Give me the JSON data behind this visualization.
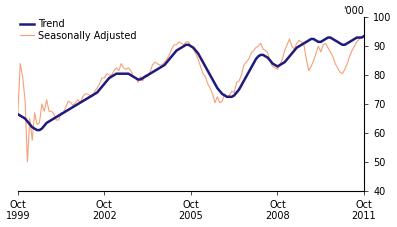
{
  "ylabel_right": "'000",
  "ylim": [
    40,
    100
  ],
  "yticks": [
    40,
    50,
    60,
    70,
    80,
    90,
    100
  ],
  "legend": [
    {
      "label": "Trend",
      "color": "#1f1a7c",
      "lw": 1.8
    },
    {
      "label": "Seasonally Adjusted",
      "color": "#f5a07a",
      "lw": 0.8
    }
  ],
  "background_color": "#ffffff",
  "trend_data": [
    [
      0,
      66.5
    ],
    [
      1,
      66.0
    ],
    [
      2,
      65.5
    ],
    [
      3,
      65.0
    ],
    [
      4,
      64.0
    ],
    [
      5,
      63.0
    ],
    [
      6,
      62.0
    ],
    [
      7,
      61.5
    ],
    [
      8,
      61.0
    ],
    [
      9,
      61.0
    ],
    [
      10,
      61.5
    ],
    [
      11,
      62.5
    ],
    [
      12,
      63.5
    ],
    [
      13,
      64.0
    ],
    [
      14,
      64.5
    ],
    [
      15,
      65.0
    ],
    [
      16,
      65.5
    ],
    [
      17,
      66.0
    ],
    [
      18,
      66.5
    ],
    [
      19,
      67.0
    ],
    [
      20,
      67.5
    ],
    [
      21,
      68.0
    ],
    [
      22,
      68.5
    ],
    [
      23,
      69.0
    ],
    [
      24,
      69.5
    ],
    [
      25,
      70.0
    ],
    [
      26,
      70.5
    ],
    [
      27,
      71.0
    ],
    [
      28,
      71.5
    ],
    [
      29,
      72.0
    ],
    [
      30,
      72.5
    ],
    [
      31,
      73.0
    ],
    [
      32,
      73.5
    ],
    [
      33,
      74.0
    ],
    [
      34,
      75.0
    ],
    [
      35,
      76.0
    ],
    [
      36,
      77.0
    ],
    [
      37,
      78.0
    ],
    [
      38,
      79.0
    ],
    [
      39,
      79.5
    ],
    [
      40,
      80.0
    ],
    [
      41,
      80.5
    ],
    [
      42,
      80.5
    ],
    [
      43,
      80.5
    ],
    [
      44,
      80.5
    ],
    [
      45,
      80.5
    ],
    [
      46,
      80.5
    ],
    [
      47,
      80.0
    ],
    [
      48,
      79.5
    ],
    [
      49,
      79.0
    ],
    [
      50,
      78.5
    ],
    [
      51,
      78.5
    ],
    [
      52,
      79.0
    ],
    [
      53,
      79.5
    ],
    [
      54,
      80.0
    ],
    [
      55,
      80.5
    ],
    [
      56,
      81.0
    ],
    [
      57,
      81.5
    ],
    [
      58,
      82.0
    ],
    [
      59,
      82.5
    ],
    [
      60,
      83.0
    ],
    [
      61,
      83.5
    ],
    [
      62,
      84.5
    ],
    [
      63,
      85.5
    ],
    [
      64,
      86.5
    ],
    [
      65,
      87.5
    ],
    [
      66,
      88.5
    ],
    [
      67,
      89.0
    ],
    [
      68,
      89.5
    ],
    [
      69,
      90.0
    ],
    [
      70,
      90.5
    ],
    [
      71,
      90.5
    ],
    [
      72,
      90.0
    ],
    [
      73,
      89.5
    ],
    [
      74,
      88.5
    ],
    [
      75,
      87.5
    ],
    [
      76,
      86.0
    ],
    [
      77,
      84.5
    ],
    [
      78,
      83.0
    ],
    [
      79,
      81.5
    ],
    [
      80,
      80.0
    ],
    [
      81,
      78.5
    ],
    [
      82,
      77.0
    ],
    [
      83,
      75.5
    ],
    [
      84,
      74.5
    ],
    [
      85,
      73.5
    ],
    [
      86,
      73.0
    ],
    [
      87,
      72.5
    ],
    [
      88,
      72.5
    ],
    [
      89,
      72.5
    ],
    [
      90,
      73.0
    ],
    [
      91,
      74.0
    ],
    [
      92,
      75.0
    ],
    [
      93,
      76.5
    ],
    [
      94,
      78.0
    ],
    [
      95,
      79.5
    ],
    [
      96,
      81.0
    ],
    [
      97,
      82.5
    ],
    [
      98,
      84.0
    ],
    [
      99,
      85.5
    ],
    [
      100,
      86.5
    ],
    [
      101,
      87.0
    ],
    [
      102,
      87.0
    ],
    [
      103,
      86.5
    ],
    [
      104,
      86.0
    ],
    [
      105,
      85.0
    ],
    [
      106,
      84.0
    ],
    [
      107,
      83.5
    ],
    [
      108,
      83.0
    ],
    [
      109,
      83.5
    ],
    [
      110,
      84.0
    ],
    [
      111,
      84.5
    ],
    [
      112,
      85.5
    ],
    [
      113,
      86.5
    ],
    [
      114,
      87.5
    ],
    [
      115,
      88.5
    ],
    [
      116,
      89.5
    ],
    [
      117,
      90.0
    ],
    [
      118,
      90.5
    ],
    [
      119,
      91.0
    ],
    [
      120,
      91.5
    ],
    [
      121,
      92.0
    ],
    [
      122,
      92.5
    ],
    [
      123,
      92.5
    ],
    [
      124,
      92.0
    ],
    [
      125,
      91.5
    ],
    [
      126,
      91.5
    ],
    [
      127,
      92.0
    ],
    [
      128,
      92.5
    ],
    [
      129,
      93.0
    ],
    [
      130,
      93.0
    ],
    [
      131,
      92.5
    ],
    [
      132,
      92.0
    ],
    [
      133,
      91.5
    ],
    [
      134,
      91.0
    ],
    [
      135,
      90.5
    ],
    [
      136,
      90.5
    ],
    [
      137,
      91.0
    ],
    [
      138,
      91.5
    ],
    [
      139,
      92.0
    ],
    [
      140,
      92.5
    ],
    [
      141,
      93.0
    ],
    [
      142,
      93.0
    ],
    [
      143,
      93.0
    ],
    [
      144,
      93.5
    ]
  ],
  "sa_data": [
    [
      0,
      66.5
    ],
    [
      1,
      84.0
    ],
    [
      2,
      79.5
    ],
    [
      3,
      71.5
    ],
    [
      4,
      50.0
    ],
    [
      5,
      65.0
    ],
    [
      6,
      57.5
    ],
    [
      7,
      67.0
    ],
    [
      8,
      63.0
    ],
    [
      9,
      63.5
    ],
    [
      10,
      70.0
    ],
    [
      11,
      67.5
    ],
    [
      12,
      71.5
    ],
    [
      13,
      67.5
    ],
    [
      14,
      67.5
    ],
    [
      15,
      66.5
    ],
    [
      16,
      64.5
    ],
    [
      17,
      64.5
    ],
    [
      18,
      67.0
    ],
    [
      19,
      67.0
    ],
    [
      20,
      69.0
    ],
    [
      21,
      71.0
    ],
    [
      22,
      70.5
    ],
    [
      23,
      69.5
    ],
    [
      24,
      70.5
    ],
    [
      25,
      71.5
    ],
    [
      26,
      70.5
    ],
    [
      27,
      72.5
    ],
    [
      28,
      73.5
    ],
    [
      29,
      73.5
    ],
    [
      30,
      73.0
    ],
    [
      31,
      72.5
    ],
    [
      32,
      74.5
    ],
    [
      33,
      75.5
    ],
    [
      34,
      77.0
    ],
    [
      35,
      79.0
    ],
    [
      36,
      79.0
    ],
    [
      37,
      80.5
    ],
    [
      38,
      80.0
    ],
    [
      39,
      80.0
    ],
    [
      40,
      81.5
    ],
    [
      41,
      82.5
    ],
    [
      42,
      81.5
    ],
    [
      43,
      84.0
    ],
    [
      44,
      82.5
    ],
    [
      45,
      82.0
    ],
    [
      46,
      82.5
    ],
    [
      47,
      81.5
    ],
    [
      48,
      79.5
    ],
    [
      49,
      79.0
    ],
    [
      50,
      77.5
    ],
    [
      51,
      79.5
    ],
    [
      52,
      78.0
    ],
    [
      53,
      80.0
    ],
    [
      54,
      79.5
    ],
    [
      55,
      81.0
    ],
    [
      56,
      83.5
    ],
    [
      57,
      84.5
    ],
    [
      58,
      84.0
    ],
    [
      59,
      83.5
    ],
    [
      60,
      83.5
    ],
    [
      61,
      84.5
    ],
    [
      62,
      85.5
    ],
    [
      63,
      87.0
    ],
    [
      64,
      89.0
    ],
    [
      65,
      90.5
    ],
    [
      66,
      90.5
    ],
    [
      67,
      91.5
    ],
    [
      68,
      91.0
    ],
    [
      69,
      90.5
    ],
    [
      70,
      91.5
    ],
    [
      71,
      91.5
    ],
    [
      72,
      90.0
    ],
    [
      73,
      89.0
    ],
    [
      74,
      87.5
    ],
    [
      75,
      85.5
    ],
    [
      76,
      83.0
    ],
    [
      77,
      80.5
    ],
    [
      78,
      79.5
    ],
    [
      79,
      77.0
    ],
    [
      80,
      75.5
    ],
    [
      81,
      73.5
    ],
    [
      82,
      70.5
    ],
    [
      83,
      72.5
    ],
    [
      84,
      70.5
    ],
    [
      85,
      71.0
    ],
    [
      86,
      73.5
    ],
    [
      87,
      72.5
    ],
    [
      88,
      73.0
    ],
    [
      89,
      74.5
    ],
    [
      90,
      74.0
    ],
    [
      91,
      77.5
    ],
    [
      92,
      78.0
    ],
    [
      93,
      80.0
    ],
    [
      94,
      83.5
    ],
    [
      95,
      84.5
    ],
    [
      96,
      85.5
    ],
    [
      97,
      87.5
    ],
    [
      98,
      88.5
    ],
    [
      99,
      89.5
    ],
    [
      100,
      90.0
    ],
    [
      101,
      91.0
    ],
    [
      102,
      89.0
    ],
    [
      103,
      88.5
    ],
    [
      104,
      87.5
    ],
    [
      105,
      84.5
    ],
    [
      106,
      83.0
    ],
    [
      107,
      82.5
    ],
    [
      108,
      82.0
    ],
    [
      109,
      83.5
    ],
    [
      110,
      85.5
    ],
    [
      111,
      88.5
    ],
    [
      112,
      90.5
    ],
    [
      113,
      92.5
    ],
    [
      114,
      90.0
    ],
    [
      115,
      89.0
    ],
    [
      116,
      91.0
    ],
    [
      117,
      92.0
    ],
    [
      118,
      91.5
    ],
    [
      119,
      90.5
    ],
    [
      120,
      85.5
    ],
    [
      121,
      81.5
    ],
    [
      122,
      83.0
    ],
    [
      123,
      85.0
    ],
    [
      124,
      87.5
    ],
    [
      125,
      90.0
    ],
    [
      126,
      88.0
    ],
    [
      127,
      90.5
    ],
    [
      128,
      91.0
    ],
    [
      129,
      89.5
    ],
    [
      130,
      88.0
    ],
    [
      131,
      86.5
    ],
    [
      132,
      84.0
    ],
    [
      133,
      82.5
    ],
    [
      134,
      81.0
    ],
    [
      135,
      80.5
    ],
    [
      136,
      82.0
    ],
    [
      137,
      84.0
    ],
    [
      138,
      86.5
    ],
    [
      139,
      88.5
    ],
    [
      140,
      90.0
    ],
    [
      141,
      91.5
    ],
    [
      142,
      92.5
    ],
    [
      143,
      93.0
    ],
    [
      144,
      93.5
    ]
  ],
  "x_tick_positions": [
    0,
    36,
    72,
    108,
    144
  ],
  "x_tick_labels": [
    "Oct\n1999",
    "Oct\n2002",
    "Oct\n2005",
    "Oct\n2008",
    "Oct\n2011"
  ],
  "xmax": 144
}
